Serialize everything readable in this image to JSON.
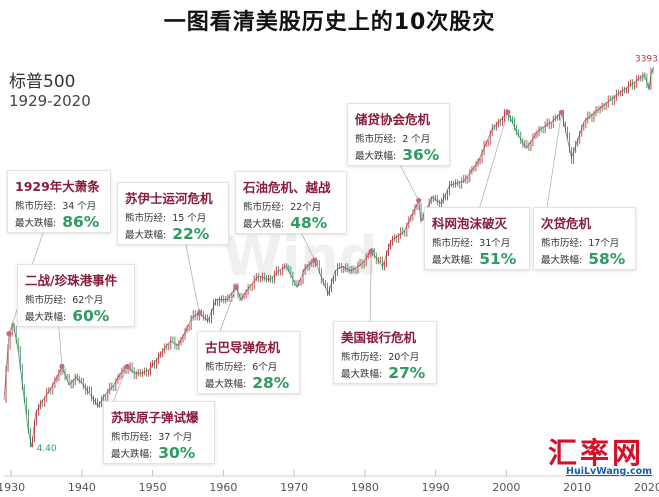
{
  "title": "一图看清美股历史上的10次股灾",
  "index_name": "标普500",
  "period": "1929-2020",
  "colors": {
    "up": "#c8373f",
    "down": "#2e9b62",
    "event_title": "#8a1b3a",
    "peak_label": "#c8373f",
    "low_label": "#2e9b62",
    "brand": "#d3122a"
  },
  "chart_data": {
    "type": "line",
    "title": "一图看清美股历史上的10次股灾",
    "xlabel": "",
    "ylabel": "",
    "scale": "log",
    "xlim": [
      1929,
      2021
    ],
    "ylim": [
      3.5,
      4000
    ],
    "x_ticks": [
      "1930",
      "1940",
      "1950",
      "1960",
      "1970",
      "1980",
      "1990",
      "2000",
      "2010",
      "2020"
    ],
    "annotations": {
      "high": "3393.52",
      "low": "4.40"
    },
    "series": [
      {
        "x": [
          1929.0,
          1929.7,
          1930.3,
          1931.0,
          1931.7,
          1932.4,
          1932.9,
          1933.5,
          1934.5,
          1935.5,
          1936.5,
          1937.2,
          1938.2,
          1939.2,
          1940.2,
          1941.2,
          1942.3,
          1943.3,
          1944.5,
          1945.5,
          1946.4,
          1947.5,
          1948.5,
          1949.5,
          1950.5,
          1951.5,
          1952.5,
          1953.6,
          1954.5,
          1955.5,
          1956.6,
          1957.8,
          1959.0,
          1960.5,
          1961.8,
          1962.5,
          1963.8,
          1965.0,
          1966.5,
          1967.8,
          1968.9,
          1970.4,
          1971.5,
          1972.9,
          1974.8,
          1975.8,
          1976.8,
          1978.0,
          1979.5,
          1980.9,
          1982.5,
          1983.7,
          1985.5,
          1987.6,
          1987.9,
          1989.5,
          1990.8,
          1992.0,
          1994.0,
          1996.0,
          1998.0,
          2000.2,
          2001.5,
          2002.8,
          2004.5,
          2006.5,
          2007.8,
          2009.2,
          2011.0,
          2013.0,
          2015.5,
          2017.5,
          2019.5,
          2020.2,
          2020.4,
          2020.8
        ],
        "y": [
          10,
          32,
          38,
          24,
          12,
          6,
          4.4,
          8,
          10,
          12,
          15,
          18,
          13,
          15,
          13,
          11,
          9,
          11,
          13,
          16,
          18,
          16,
          16,
          17,
          20,
          24,
          28,
          26,
          32,
          42,
          46,
          40,
          58,
          58,
          72,
          58,
          74,
          88,
          82,
          96,
          105,
          72,
          100,
          116,
          64,
          96,
          104,
          96,
          108,
          136,
          104,
          164,
          190,
          330,
          226,
          350,
          312,
          432,
          462,
          650,
          1150,
          1550,
          1080,
          820,
          1120,
          1320,
          1540,
          700,
          1320,
          1620,
          2080,
          2480,
          2980,
          2300,
          3000,
          3393
        ]
      }
    ],
    "events": [
      {
        "name": "1929年大萧条",
        "duration": "34 个月",
        "drawdown": "86%",
        "start_year": 1929.7,
        "start_value": 32
      },
      {
        "name": "二战/珍珠港事件",
        "duration": "62个月",
        "drawdown": "60%",
        "start_year": 1937.2,
        "start_value": 18
      },
      {
        "name": "苏联原子弹试爆",
        "duration": "37 个月",
        "drawdown": "30%",
        "start_year": 1946.4,
        "start_value": 18
      },
      {
        "name": "苏伊士运河危机",
        "duration": "15 个月",
        "drawdown": "22%",
        "start_year": 1956.6,
        "start_value": 46
      },
      {
        "name": "古巴导弹危机",
        "duration": "6个月",
        "drawdown": "28%",
        "start_year": 1961.8,
        "start_value": 72
      },
      {
        "name": "石油危机、越战",
        "duration": "22个月",
        "drawdown": "48%",
        "start_year": 1972.9,
        "start_value": 116
      },
      {
        "name": "美国银行危机",
        "duration": "20个月",
        "drawdown": "27%",
        "start_year": 1980.9,
        "start_value": 136
      },
      {
        "name": "储贷协会危机",
        "duration": "2 个月",
        "drawdown": "36%",
        "start_year": 1987.6,
        "start_value": 330
      },
      {
        "name": "科网泡沫破灭",
        "duration": "31个月",
        "drawdown": "51%",
        "start_year": 2000.2,
        "start_value": 1550
      },
      {
        "name": "次贷危机",
        "duration": "17个月",
        "drawdown": "58%",
        "start_year": 2007.8,
        "start_value": 1540
      }
    ]
  },
  "cards_text": {
    "bear_label": "熊市历经:",
    "drop_label": "最大跌幅:"
  },
  "watermark": "Wind",
  "brand": {
    "name": "汇率网",
    "url": "HuiLvWang.com"
  }
}
